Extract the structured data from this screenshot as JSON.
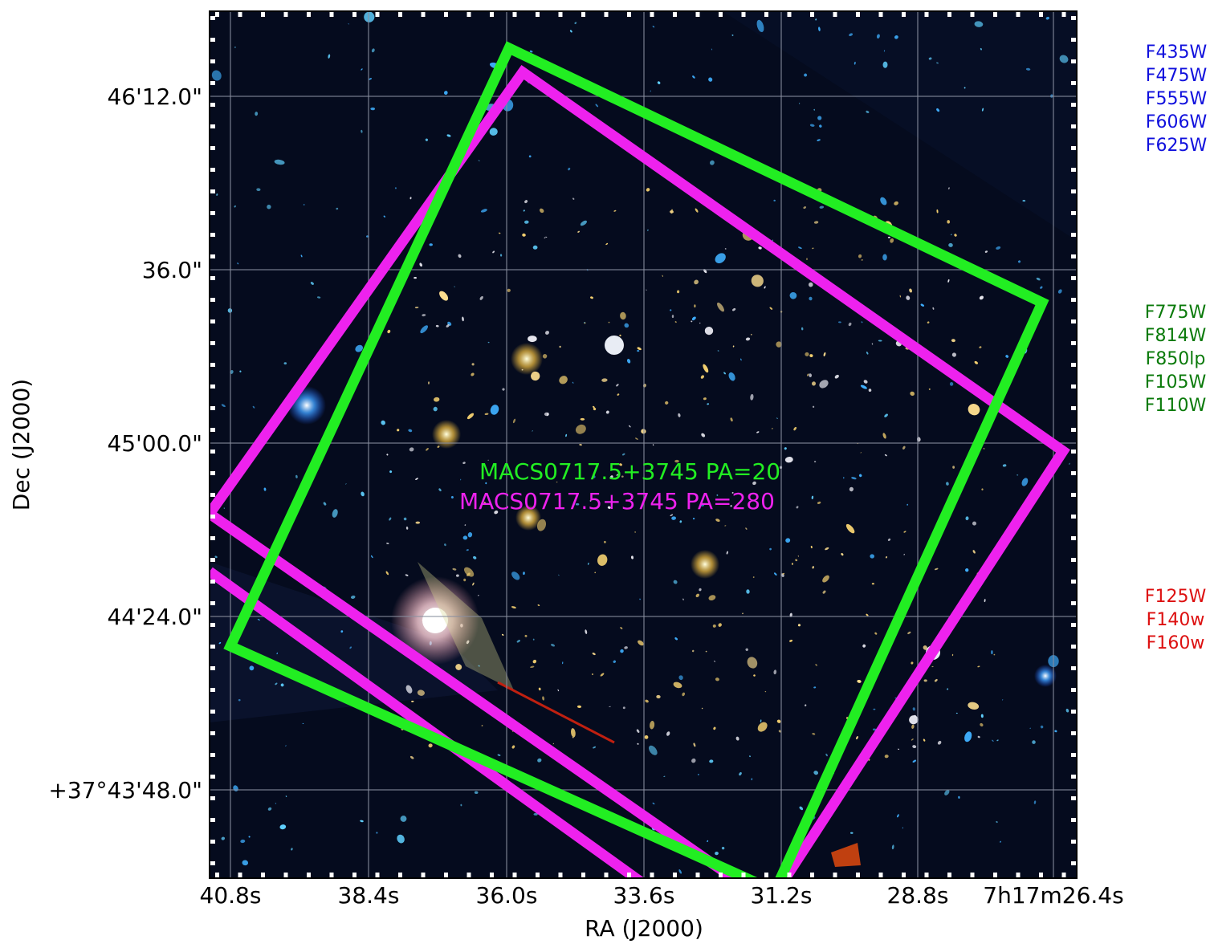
{
  "axes": {
    "xlabel": "RA (J2000)",
    "ylabel": "Dec (J2000)",
    "x_ticks": [
      "40.8s",
      "38.4s",
      "36.0s",
      "33.6s",
      "31.2s",
      "28.8s",
      "7h17m26.4s"
    ],
    "y_ticks": [
      "46'12.0\"",
      "36.0\"",
      "45'00.0\"",
      "44'24.0\"",
      "+37°43'48.0\""
    ]
  },
  "overlays": [
    {
      "label": "MACS0717.5+3745 PA=20",
      "color": "#22ee22"
    },
    {
      "label": "MACS0717.5+3745 PA=280",
      "color": "#ee22ee"
    }
  ],
  "filters": {
    "blue": {
      "color": "#1010dd",
      "items": [
        "F435W",
        "F475W",
        "F555W",
        "F606W",
        "F625W"
      ]
    },
    "green": {
      "color": "#0a7a0a",
      "items": [
        "F775W",
        "F814W",
        "F850lp",
        "F105W",
        "F110W"
      ]
    },
    "red": {
      "color": "#dd1010",
      "items": [
        "F125W",
        "F140w",
        "F160w"
      ]
    }
  },
  "colors": {
    "sky": "#050b1e",
    "grid": "#8a8fa0"
  }
}
